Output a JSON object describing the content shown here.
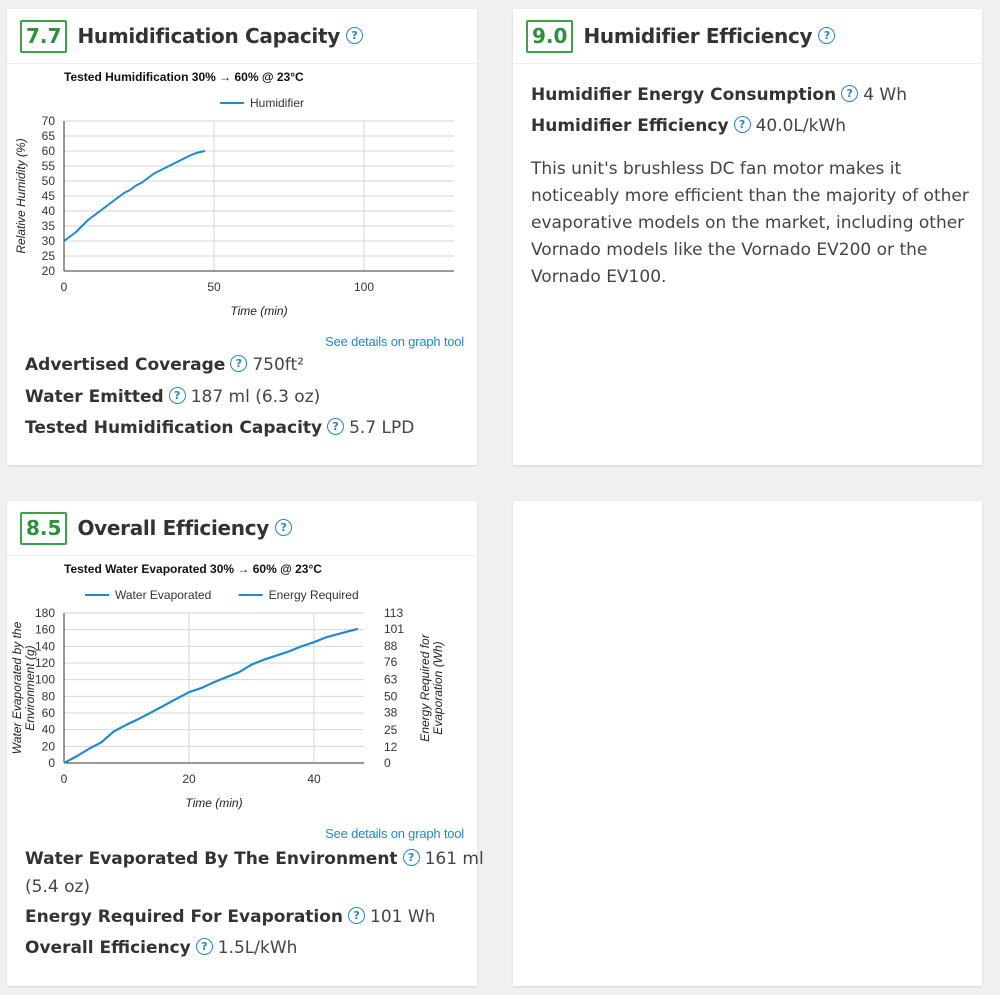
{
  "cards": {
    "humidification": {
      "score": "7.7",
      "title": "Humidification Capacity",
      "graph_link": "See details on graph tool",
      "stats": [
        {
          "label": "Advertised Coverage",
          "value": "750ft²"
        },
        {
          "label": "Water Emitted",
          "value": "187 ml (6.3 oz)"
        },
        {
          "label": "Tested Humidification Capacity",
          "value": "5.7 LPD"
        }
      ]
    },
    "efficiency": {
      "score": "9.0",
      "title": "Humidifier Efficiency",
      "stats": [
        {
          "label": "Humidifier Energy Consumption",
          "value": "4 Wh"
        },
        {
          "label": "Humidifier Efficiency",
          "value": "40.0L/kWh"
        }
      ],
      "description": "This unit's brushless DC fan motor makes it noticeably more efficient than the majority of other evaporative models on the market, including other Vornado models like the Vornado EV200 or the Vornado EV100."
    },
    "overall": {
      "score": "8.5",
      "title": "Overall Efficiency",
      "graph_link": "See details on graph tool",
      "stats": [
        {
          "label": "Water Evaporated By The Environment",
          "value": "161 ml"
        },
        {
          "label": "",
          "value": "(5.4 oz)"
        },
        {
          "label": "Energy Required For Evaporation",
          "value": "101 Wh"
        },
        {
          "label": "Overall Efficiency",
          "value": "1.5L/kWh"
        }
      ]
    }
  },
  "colors": {
    "accent": "#2a86c5",
    "score_border": "#3aa34a",
    "line": "#1f88d4"
  },
  "chart_data": [
    {
      "type": "line",
      "title": "Tested Humidification 30% → 60% @ 23°C",
      "xlabel": "Time (min)",
      "ylabel": "Relative Humidity (%)",
      "xlim": [
        0,
        130
      ],
      "ylim": [
        20,
        70
      ],
      "xticks": [
        0,
        50,
        100
      ],
      "yticks": [
        20,
        25,
        30,
        35,
        40,
        45,
        50,
        55,
        60,
        65,
        70
      ],
      "legend": "top-center",
      "grid": true,
      "series": [
        {
          "name": "Humidifier",
          "x": [
            0,
            2,
            4,
            6,
            8,
            10,
            12,
            14,
            16,
            18,
            20,
            22,
            24,
            26,
            28,
            30,
            32,
            34,
            36,
            38,
            40,
            42,
            44,
            46,
            47
          ],
          "y": [
            30,
            31.5,
            33,
            35,
            37,
            38.5,
            40,
            41.5,
            43,
            44.5,
            46,
            47,
            48.5,
            49.5,
            51,
            52.5,
            53.5,
            54.5,
            55.5,
            56.5,
            57.5,
            58.5,
            59.3,
            59.8,
            60
          ]
        }
      ]
    },
    {
      "type": "line",
      "title": "Tested Water Evaporated 30% → 60% @ 23°C",
      "xlabel": "Time (min)",
      "ylabel": "Water Evaporated by the Environment (g)",
      "y2label": "Energy Required for Evaporation (Wh)",
      "xlim": [
        0,
        48
      ],
      "ylim": [
        0,
        180
      ],
      "y2lim": [
        0,
        113
      ],
      "xticks": [
        0,
        20,
        40
      ],
      "yticks": [
        0,
        20,
        40,
        60,
        80,
        100,
        120,
        140,
        160,
        180
      ],
      "y2ticks": [
        0,
        12,
        25,
        38,
        50,
        63,
        76,
        88,
        101,
        113
      ],
      "legend": "top-center",
      "grid": true,
      "series": [
        {
          "name": "Water Evaporated",
          "x": [
            0,
            2,
            4,
            6,
            8,
            10,
            12,
            14,
            16,
            18,
            20,
            22,
            24,
            26,
            28,
            30,
            32,
            34,
            36,
            38,
            40,
            42,
            44,
            46,
            47
          ],
          "y": [
            0,
            8,
            17,
            25,
            38,
            46,
            53,
            61,
            69,
            77,
            85,
            90,
            97,
            103,
            109,
            118,
            124,
            129,
            134,
            140,
            145,
            151,
            155,
            159,
            161
          ]
        },
        {
          "name": "Energy Required",
          "x": [
            0,
            2,
            4,
            6,
            8,
            10,
            12,
            14,
            16,
            18,
            20,
            22,
            24,
            26,
            28,
            30,
            32,
            34,
            36,
            38,
            40,
            42,
            44,
            46,
            47
          ],
          "y": [
            0,
            5,
            10.7,
            15.7,
            23.9,
            28.9,
            33.3,
            38.3,
            43.3,
            48.4,
            53.4,
            56.5,
            60.9,
            64.7,
            68.4,
            74.1,
            77.9,
            81,
            84.1,
            87.9,
            91,
            94.8,
            97.3,
            99.8,
            101
          ]
        }
      ]
    }
  ]
}
